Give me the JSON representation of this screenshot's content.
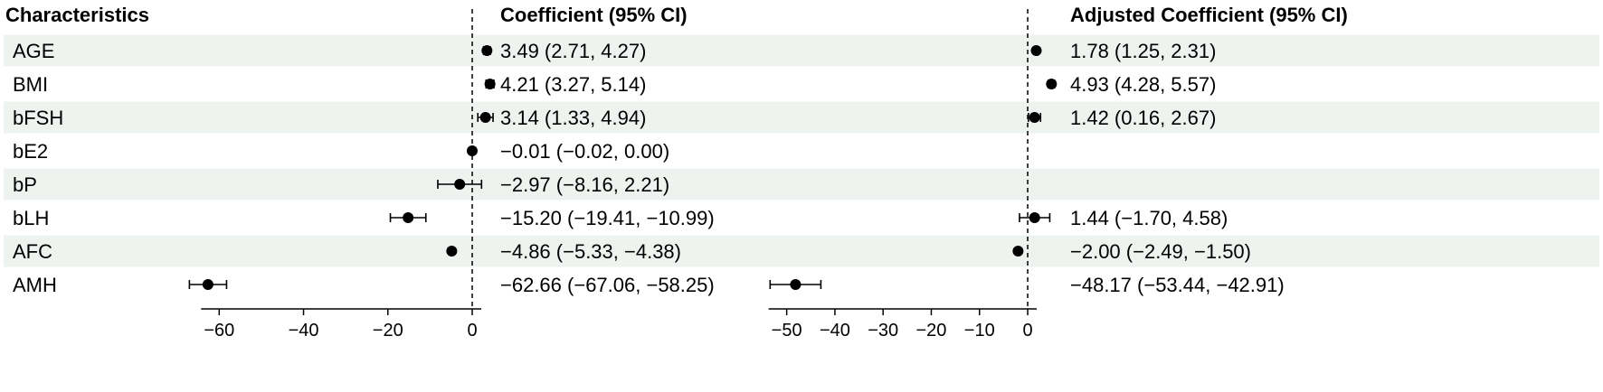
{
  "headers": {
    "characteristics": "Characteristics",
    "coefficient": "Coefficient (95% CI)",
    "adjusted": "Adjusted Coefficient (95% CI)"
  },
  "colors": {
    "stripe": "#eef3ef",
    "ink": "#000000",
    "background": "#ffffff"
  },
  "chart_data": [
    {
      "type": "forest",
      "title": "Coefficient (95% CI)",
      "xlim": [
        -68,
        3
      ],
      "xticks": [
        -60,
        -40,
        -20,
        0
      ],
      "reference_line": 0,
      "rows": [
        {
          "label": "AGE",
          "estimate": 3.49,
          "lower": 2.71,
          "upper": 4.27,
          "text": "3.49 (2.71, 4.27)"
        },
        {
          "label": "BMI",
          "estimate": 4.21,
          "lower": 3.27,
          "upper": 5.14,
          "text": "4.21 (3.27, 5.14)"
        },
        {
          "label": "bFSH",
          "estimate": 3.14,
          "lower": 1.33,
          "upper": 4.94,
          "text": "3.14 (1.33, 4.94)"
        },
        {
          "label": "bE2",
          "estimate": -0.01,
          "lower": -0.02,
          "upper": 0.0,
          "text": "−0.01 (−0.02, 0.00)"
        },
        {
          "label": "bP",
          "estimate": -2.97,
          "lower": -8.16,
          "upper": 2.21,
          "text": "−2.97 (−8.16, 2.21)"
        },
        {
          "label": "bLH",
          "estimate": -15.2,
          "lower": -19.41,
          "upper": -10.99,
          "text": "−15.20 (−19.41, −10.99)"
        },
        {
          "label": "AFC",
          "estimate": -4.86,
          "lower": -5.33,
          "upper": -4.38,
          "text": "−4.86 (−5.33, −4.38)"
        },
        {
          "label": "AMH",
          "estimate": -62.66,
          "lower": -67.06,
          "upper": -58.25,
          "text": "−62.66 (−67.06, −58.25)"
        }
      ]
    },
    {
      "type": "forest",
      "title": "Adjusted Coefficient (95% CI)",
      "xlim": [
        -55,
        6
      ],
      "xticks": [
        -50,
        -40,
        -30,
        -20,
        -10,
        0
      ],
      "reference_line": 0,
      "rows": [
        {
          "label": "AGE",
          "estimate": 1.78,
          "lower": 1.25,
          "upper": 2.31,
          "text": "1.78 (1.25, 2.31)"
        },
        {
          "label": "BMI",
          "estimate": 4.93,
          "lower": 4.28,
          "upper": 5.57,
          "text": "4.93 (4.28, 5.57)"
        },
        {
          "label": "bFSH",
          "estimate": 1.42,
          "lower": 0.16,
          "upper": 2.67,
          "text": "1.42 (0.16, 2.67)"
        },
        {
          "label": "bE2",
          "estimate": null,
          "lower": null,
          "upper": null,
          "text": ""
        },
        {
          "label": "bP",
          "estimate": null,
          "lower": null,
          "upper": null,
          "text": ""
        },
        {
          "label": "bLH",
          "estimate": 1.44,
          "lower": -1.7,
          "upper": 4.58,
          "text": "1.44 (−1.70, 4.58)"
        },
        {
          "label": "AFC",
          "estimate": -2.0,
          "lower": -2.49,
          "upper": -1.5,
          "text": "−2.00 (−2.49, −1.50)"
        },
        {
          "label": "AMH",
          "estimate": -48.17,
          "lower": -53.44,
          "upper": -42.91,
          "text": "−48.17 (−53.44, −42.91)"
        }
      ]
    }
  ]
}
